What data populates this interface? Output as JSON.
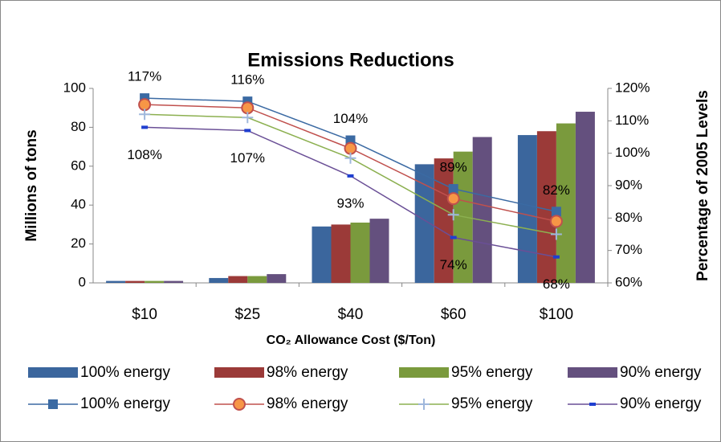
{
  "chart_data": {
    "type": "bar-line-combo",
    "title": "Emissions Reductions",
    "xlabel": "CO₂ Allowance Cost ($/Ton)",
    "ylabel": "Millions of tons",
    "y2label": "Percentage of  2005 Levels",
    "categories": [
      "$10",
      "$25",
      "$40",
      "$60",
      "$100"
    ],
    "ylim": [
      0,
      100
    ],
    "yticks": [
      0,
      20,
      40,
      60,
      80,
      100
    ],
    "y2lim": [
      60,
      120
    ],
    "y2ticks": [
      {
        "value": 60,
        "label": "60%"
      },
      {
        "value": 70,
        "label": "70%"
      },
      {
        "value": 80,
        "label": "80%"
      },
      {
        "value": 90,
        "label": "90%"
      },
      {
        "value": 100,
        "label": "100%"
      },
      {
        "value": 110,
        "label": "110%"
      },
      {
        "value": 120,
        "label": "120%"
      }
    ],
    "series": [
      {
        "name": "100% energy",
        "kind": "bar",
        "color": "#3b669d",
        "values": [
          1,
          2.5,
          29,
          61,
          76
        ]
      },
      {
        "name": "98% energy",
        "kind": "bar",
        "color": "#9b3a38",
        "values": [
          1,
          3.5,
          30,
          64,
          78
        ]
      },
      {
        "name": "95% energy",
        "kind": "bar",
        "color": "#7a9a3d",
        "values": [
          1,
          3.5,
          31,
          67.5,
          82
        ]
      },
      {
        "name": "90% energy",
        "kind": "bar",
        "color": "#64507e",
        "values": [
          1,
          4.5,
          33,
          75,
          88
        ]
      },
      {
        "name": "100% energy",
        "kind": "line",
        "axis": "y2",
        "color": "#3b6aa3",
        "marker": "square",
        "values": [
          117,
          116,
          104,
          89,
          82
        ],
        "value_labels": [
          "117%",
          "116%",
          "104%",
          "89%",
          "82%"
        ]
      },
      {
        "name": "98% energy",
        "kind": "line",
        "axis": "y2",
        "color": "#c0504d",
        "marker": "circle",
        "values": [
          115,
          114,
          101.5,
          86,
          79
        ]
      },
      {
        "name": "95% energy",
        "kind": "line",
        "axis": "y2",
        "color": "#8cb050",
        "marker": "plus",
        "values": [
          112,
          111,
          98.5,
          81,
          75
        ]
      },
      {
        "name": "90% energy",
        "kind": "line",
        "axis": "y2",
        "color": "#6a4f96",
        "marker": "dash",
        "values": [
          108,
          107,
          93,
          74,
          68
        ],
        "value_labels": [
          "108%",
          "107%",
          "93%",
          "74%",
          "68%"
        ]
      }
    ]
  }
}
